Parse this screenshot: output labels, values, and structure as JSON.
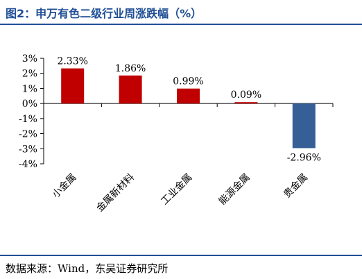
{
  "figure": {
    "title": "图2：申万有色二级行业周涨跌幅（%）",
    "source": "数据来源：Wind，东吴证券研究所"
  },
  "colors": {
    "positive": "#c00000",
    "negative": "#365f97",
    "accent": "#1f4e96"
  },
  "chart_data": {
    "type": "bar",
    "categories": [
      "小金属",
      "金属新材料",
      "工业金属",
      "能源金属",
      "贵金属"
    ],
    "values": [
      2.33,
      1.86,
      0.99,
      0.09,
      -2.96
    ],
    "value_labels": [
      "2.33%",
      "1.86%",
      "0.99%",
      "0.09%",
      "-2.96%"
    ],
    "ylim": [
      -4,
      3
    ],
    "yticks": [
      "3%",
      "2%",
      "1%",
      "0%",
      "-1%",
      "-2%",
      "-3%",
      "-4%"
    ],
    "grid": false
  }
}
